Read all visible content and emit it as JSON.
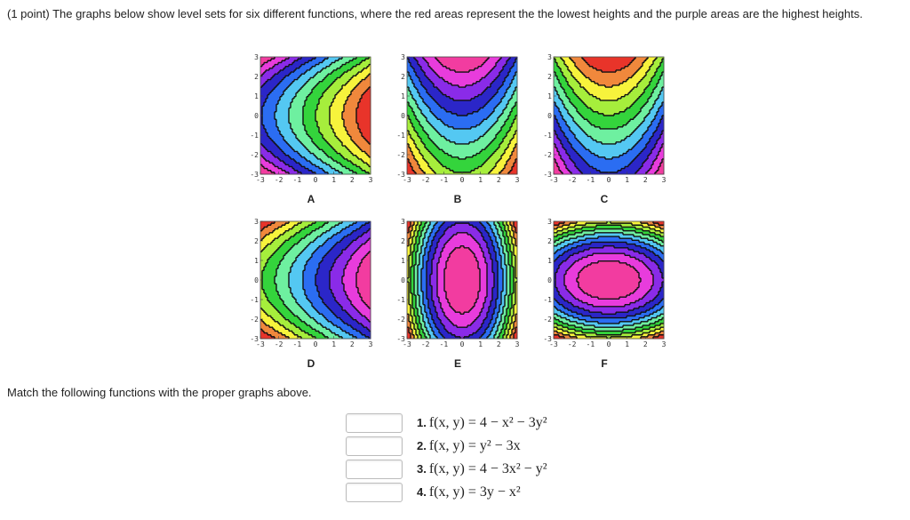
{
  "problem": {
    "text": "(1 point) The graphs below show level sets for six different functions, where the red areas represent the the lowest heights and the purple areas are the highest heights."
  },
  "palette": [
    "#e8342a",
    "#f0883c",
    "#f7f33c",
    "#a6ee3c",
    "#34d43c",
    "#6ef0a0",
    "#54c8f2",
    "#2b6df2",
    "#2b26c8",
    "#8a2be8",
    "#e83cdc",
    "#f23ca0"
  ],
  "chart_data": [
    {
      "type": "heatmap",
      "label": "A",
      "xlim": [
        -3,
        3
      ],
      "ylim": [
        -3,
        3
      ],
      "x_ticks": [
        "-3",
        "-2",
        "-1",
        "0",
        "1",
        "2",
        "3"
      ],
      "y_ticks": [
        "3",
        "2",
        "1",
        "0",
        "-1",
        "-2",
        "-3"
      ],
      "expr": "y^2 - 3x"
    },
    {
      "type": "heatmap",
      "label": "B",
      "xlim": [
        -3,
        3
      ],
      "ylim": [
        -3,
        3
      ],
      "x_ticks": [
        "-3",
        "-2",
        "-1",
        "0",
        "1",
        "2",
        "3"
      ],
      "y_ticks": [
        "3",
        "2",
        "1",
        "0",
        "-1",
        "-2",
        "-3"
      ],
      "expr": "3y - x^2"
    },
    {
      "type": "heatmap",
      "label": "C",
      "xlim": [
        -3,
        3
      ],
      "ylim": [
        -3,
        3
      ],
      "x_ticks": [
        "-3",
        "-2",
        "-1",
        "0",
        "1",
        "2",
        "3"
      ],
      "y_ticks": [
        "3",
        "2",
        "1",
        "0",
        "-1",
        "-2",
        "-3"
      ],
      "expr": "x^2 - 3y"
    },
    {
      "type": "heatmap",
      "label": "D",
      "xlim": [
        -3,
        3
      ],
      "ylim": [
        -3,
        3
      ],
      "x_ticks": [
        "-3",
        "-2",
        "-1",
        "0",
        "1",
        "2",
        "3"
      ],
      "y_ticks": [
        "3",
        "2",
        "1",
        "0",
        "-1",
        "-2",
        "-3"
      ],
      "expr": "3x - y^2"
    },
    {
      "type": "heatmap",
      "label": "E",
      "xlim": [
        -3,
        3
      ],
      "ylim": [
        -3,
        3
      ],
      "x_ticks": [
        "-3",
        "-2",
        "-1",
        "0",
        "1",
        "2",
        "3"
      ],
      "y_ticks": [
        "3",
        "2",
        "1",
        "0",
        "-1",
        "-2",
        "-3"
      ],
      "expr": "4 - 3x^2 - y^2"
    },
    {
      "type": "heatmap",
      "label": "F",
      "xlim": [
        -3,
        3
      ],
      "ylim": [
        -3,
        3
      ],
      "x_ticks": [
        "-3",
        "-2",
        "-1",
        "0",
        "1",
        "2",
        "3"
      ],
      "y_ticks": [
        "3",
        "2",
        "1",
        "0",
        "-1",
        "-2",
        "-3"
      ],
      "expr": "4 - x^2 - 3y^2"
    }
  ],
  "instructions": "Match the following functions with the proper graphs above.",
  "answers": [
    {
      "number": "1.",
      "expr": "f(x, y) = 4 − x² − 3y²",
      "value": ""
    },
    {
      "number": "2.",
      "expr": "f(x, y) = y² − 3x",
      "value": ""
    },
    {
      "number": "3.",
      "expr": "f(x, y) = 4 − 3x² − y²",
      "value": ""
    },
    {
      "number": "4.",
      "expr": "f(x, y) = 3y − x²",
      "value": ""
    }
  ]
}
